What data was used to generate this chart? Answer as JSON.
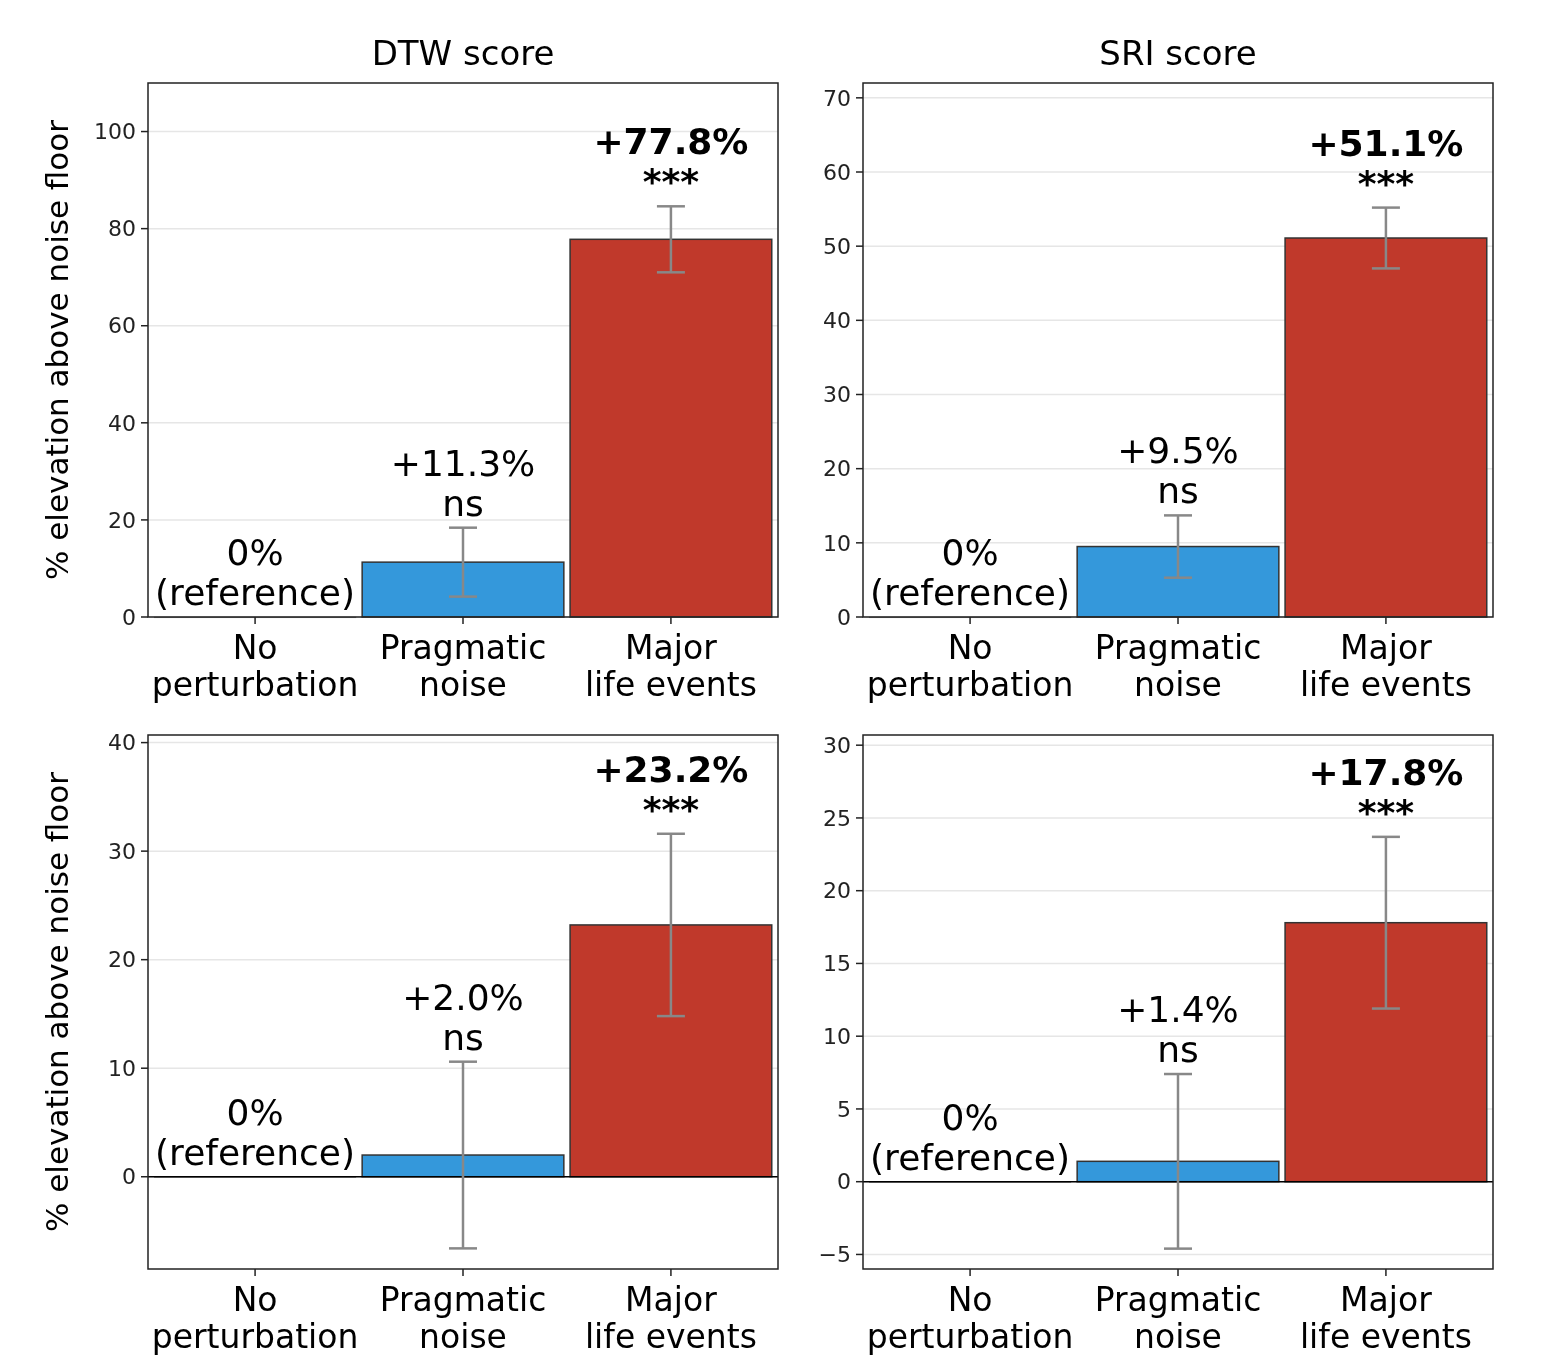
{
  "chart_data": [
    {
      "type": "bar",
      "title": "DTW score",
      "ylabel": "% elevation above noise floor",
      "categories": [
        "No perturbation",
        "Pragmatic noise",
        "Major life events"
      ],
      "values": [
        0,
        11.3,
        77.8
      ],
      "colors": [
        "#808080",
        "#3498db",
        "#c0392b"
      ],
      "errors": [
        null,
        7.1,
        6.8
      ],
      "value_labels": [
        "0%\n(reference)",
        "+11.3%\nns",
        "+77.8%\n***"
      ],
      "ylim": [
        0,
        110
      ],
      "yticks": [
        0,
        20,
        40,
        60,
        80,
        100
      ],
      "grid": "y"
    },
    {
      "type": "bar",
      "title": "SRI score",
      "categories": [
        "No perturbation",
        "Pragmatic noise",
        "Major life events"
      ],
      "values": [
        0,
        9.5,
        51.1
      ],
      "colors": [
        "#808080",
        "#3498db",
        "#c0392b"
      ],
      "errors": [
        null,
        4.2,
        4.1
      ],
      "value_labels": [
        "0%\n(reference)",
        "+9.5%\nns",
        "+51.1%\n***"
      ],
      "ylim": [
        0,
        72
      ],
      "yticks": [
        0,
        10,
        20,
        30,
        40,
        50,
        60,
        70
      ],
      "grid": "y"
    },
    {
      "type": "bar",
      "ylabel": "% elevation above noise floor",
      "categories": [
        "No perturbation",
        "Pragmatic noise",
        "Major life events"
      ],
      "values": [
        0,
        2.0,
        23.2
      ],
      "colors": [
        "#808080",
        "#3498db",
        "#c0392b"
      ],
      "errors": [
        null,
        8.6,
        8.4
      ],
      "value_labels": [
        "0%\n(reference)",
        "+2.0%\nns",
        "+23.2%\n***"
      ],
      "ylim": [
        -8.5,
        40.7
      ],
      "yticks": [
        0,
        10,
        20,
        30,
        40
      ],
      "grid": "y",
      "ref_lines": [
        {
          "axis": "y",
          "value": 0,
          "color": "#000000"
        }
      ]
    },
    {
      "type": "bar",
      "categories": [
        "No perturbation",
        "Pragmatic noise",
        "Major life events"
      ],
      "values": [
        0,
        1.4,
        17.8
      ],
      "colors": [
        "#808080",
        "#3498db",
        "#c0392b"
      ],
      "errors": [
        null,
        6.0,
        5.9
      ],
      "value_labels": [
        "0%\n(reference)",
        "+1.4%\nns",
        "+17.8%\n***"
      ],
      "ylim": [
        -6,
        30.7
      ],
      "yticks": [
        {
          "value": -5,
          "label": "−5"
        },
        0,
        5,
        10,
        15,
        20,
        25,
        30
      ],
      "grid": "y",
      "ref_lines": [
        {
          "axis": "y",
          "value": 0,
          "color": "#000000"
        }
      ]
    }
  ]
}
